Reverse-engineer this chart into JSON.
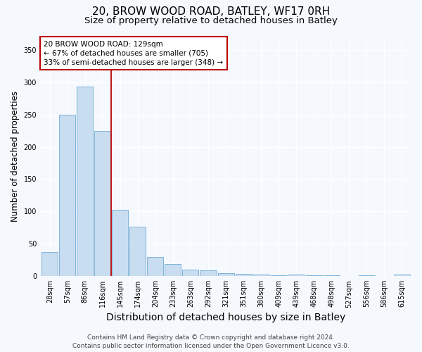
{
  "title1": "20, BROW WOOD ROAD, BATLEY, WF17 0RH",
  "title2": "Size of property relative to detached houses in Batley",
  "xlabel": "Distribution of detached houses by size in Batley",
  "ylabel": "Number of detached properties",
  "categories": [
    "28sqm",
    "57sqm",
    "86sqm",
    "116sqm",
    "145sqm",
    "174sqm",
    "204sqm",
    "233sqm",
    "263sqm",
    "292sqm",
    "321sqm",
    "351sqm",
    "380sqm",
    "409sqm",
    "439sqm",
    "468sqm",
    "498sqm",
    "527sqm",
    "556sqm",
    "586sqm",
    "615sqm"
  ],
  "values": [
    37,
    250,
    293,
    225,
    103,
    77,
    30,
    19,
    10,
    9,
    5,
    3,
    2,
    1,
    2,
    1,
    1,
    0,
    1,
    0,
    2
  ],
  "bar_color": "#c8ddf0",
  "bar_edge_color": "#7fb3d9",
  "vline_x_idx": 3,
  "vline_color": "#bb0000",
  "annotation_text": "20 BROW WOOD ROAD: 129sqm\n← 67% of detached houses are smaller (705)\n33% of semi-detached houses are larger (348) →",
  "annotation_box_facecolor": "white",
  "annotation_box_edgecolor": "#bb0000",
  "ylim_max": 370,
  "yticks": [
    0,
    50,
    100,
    150,
    200,
    250,
    300,
    350
  ],
  "footer1": "Contains HM Land Registry data © Crown copyright and database right 2024.",
  "footer2": "Contains public sector information licensed under the Open Government Licence v3.0.",
  "bg_color": "#f5f8fd",
  "plot_bg_color": "#f5f8fd",
  "grid_color": "#ffffff",
  "title1_fontsize": 11,
  "title2_fontsize": 9.5,
  "xlabel_fontsize": 10,
  "ylabel_fontsize": 8.5,
  "tick_fontsize": 7,
  "annotation_fontsize": 7.5,
  "footer_fontsize": 6.5
}
